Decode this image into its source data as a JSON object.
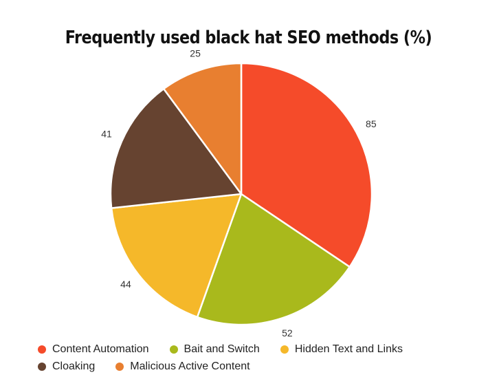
{
  "chart_data": {
    "type": "pie",
    "title": "Frequently used black hat SEO methods (%)",
    "categories": [
      "Content Automation",
      "Bait and Switch",
      "Hidden Text and Links",
      "Cloaking",
      "Malicious Active Content"
    ],
    "values": [
      85,
      52,
      44,
      41,
      25
    ],
    "colors": [
      "#f54b2a",
      "#a9b91c",
      "#f5b82a",
      "#664330",
      "#e87f30"
    ],
    "legend_position": "bottom",
    "labels_outside": true
  }
}
